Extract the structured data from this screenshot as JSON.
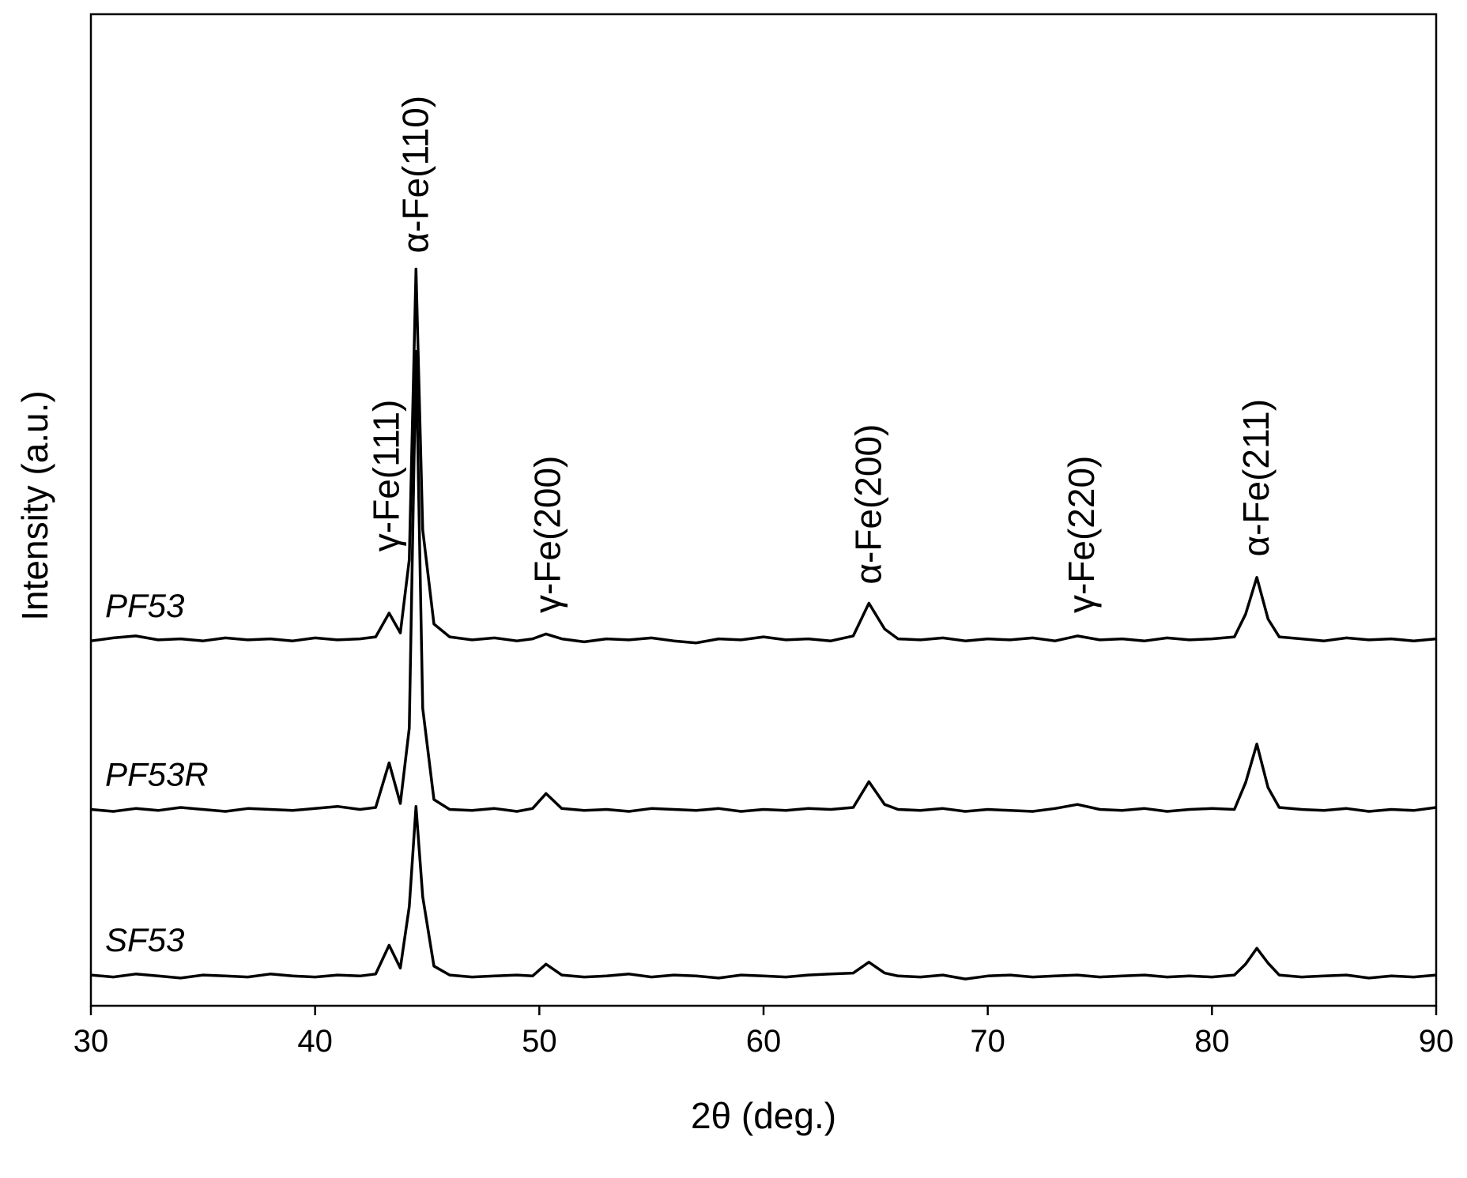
{
  "chart_data": {
    "type": "line",
    "xlabel": "2θ (deg.)",
    "ylabel": "Intensity (a.u.)",
    "xlim": [
      30,
      90
    ],
    "xticks": [
      30,
      40,
      50,
      60,
      70,
      80,
      90
    ],
    "ylim": [
      0,
      100
    ],
    "x": [
      30,
      31,
      32,
      33,
      34,
      35,
      36,
      37,
      38,
      39,
      40,
      41,
      42,
      42.7,
      43.3,
      43.8,
      44.2,
      44.5,
      44.8,
      45.3,
      46,
      47,
      48,
      49,
      49.7,
      50.3,
      51,
      52,
      53,
      54,
      55,
      56,
      57,
      58,
      59,
      60,
      61,
      62,
      63,
      64,
      64.7,
      65.4,
      66,
      67,
      68,
      69,
      70,
      71,
      72,
      73,
      74,
      75,
      76,
      77,
      78,
      79,
      80,
      81,
      81.5,
      82,
      82.5,
      83,
      84,
      85,
      86,
      87,
      88,
      89,
      90
    ],
    "series": [
      {
        "name": "PF53",
        "color": "#000000",
        "values": [
          36.8,
          37.1,
          37.3,
          36.9,
          37.0,
          36.8,
          37.1,
          36.9,
          37.0,
          36.8,
          37.1,
          36.9,
          37.0,
          37.2,
          39.6,
          37.6,
          45,
          74.3,
          48,
          38.5,
          37.2,
          36.9,
          37.1,
          36.8,
          37.0,
          37.5,
          37.0,
          36.7,
          37.0,
          36.9,
          37.1,
          36.8,
          36.6,
          37.0,
          36.9,
          37.2,
          36.9,
          37.0,
          36.8,
          37.3,
          40.6,
          38.0,
          37.0,
          36.9,
          37.1,
          36.8,
          37.0,
          36.9,
          37.1,
          36.8,
          37.3,
          36.9,
          37.0,
          36.8,
          37.1,
          36.9,
          37.0,
          37.2,
          39.5,
          43.2,
          39.0,
          37.2,
          37.0,
          36.8,
          37.1,
          36.9,
          37.0,
          36.8,
          37.0
        ]
      },
      {
        "name": "PF53R",
        "color": "#000000",
        "values": [
          19.8,
          19.6,
          19.9,
          19.7,
          20.0,
          19.8,
          19.6,
          19.9,
          19.8,
          19.7,
          19.9,
          20.1,
          19.8,
          20.0,
          24.5,
          20.4,
          28,
          66,
          30,
          20.8,
          19.8,
          19.7,
          19.9,
          19.6,
          19.9,
          21.4,
          19.9,
          19.7,
          19.8,
          19.6,
          19.9,
          19.8,
          19.7,
          19.9,
          19.6,
          19.8,
          19.7,
          19.9,
          19.8,
          20.0,
          22.6,
          20.3,
          19.8,
          19.7,
          19.9,
          19.6,
          19.8,
          19.7,
          19.6,
          19.9,
          20.3,
          19.8,
          19.7,
          19.9,
          19.6,
          19.8,
          19.9,
          19.8,
          22.5,
          26.4,
          22.0,
          20.0,
          19.8,
          19.7,
          19.9,
          19.6,
          19.8,
          19.7,
          20.0
        ]
      },
      {
        "name": "SF53",
        "color": "#000000",
        "values": [
          3.1,
          2.9,
          3.2,
          3.0,
          2.8,
          3.1,
          3.0,
          2.9,
          3.2,
          3.0,
          2.9,
          3.1,
          3.0,
          3.2,
          6.1,
          3.8,
          10,
          20.1,
          11,
          4.0,
          3.1,
          2.9,
          3.0,
          3.1,
          3.0,
          4.2,
          3.1,
          2.9,
          3.0,
          3.2,
          2.9,
          3.1,
          3.0,
          2.8,
          3.1,
          3.0,
          2.9,
          3.1,
          3.2,
          3.3,
          4.4,
          3.3,
          3.0,
          2.9,
          3.1,
          2.7,
          3.0,
          3.1,
          2.9,
          3.0,
          3.1,
          2.9,
          3.0,
          3.1,
          2.9,
          3.0,
          2.9,
          3.1,
          4.2,
          5.8,
          4.3,
          3.1,
          2.9,
          3.0,
          3.1,
          2.8,
          3.0,
          2.9,
          3.1
        ]
      }
    ],
    "annotations": [
      {
        "text": "γ-Fe(111)",
        "x": 43.2,
        "y": 45.8
      },
      {
        "text": "α-Fe(110)",
        "x": 44.5,
        "y": 75.9
      },
      {
        "text": "γ-Fe(200)",
        "x": 50.4,
        "y": 39.6
      },
      {
        "text": "α-Fe(200)",
        "x": 64.7,
        "y": 42.5
      },
      {
        "text": "γ-Fe(220)",
        "x": 74.2,
        "y": 39.6
      },
      {
        "text": "α-Fe(211)",
        "x": 82,
        "y": 45.3
      }
    ]
  }
}
